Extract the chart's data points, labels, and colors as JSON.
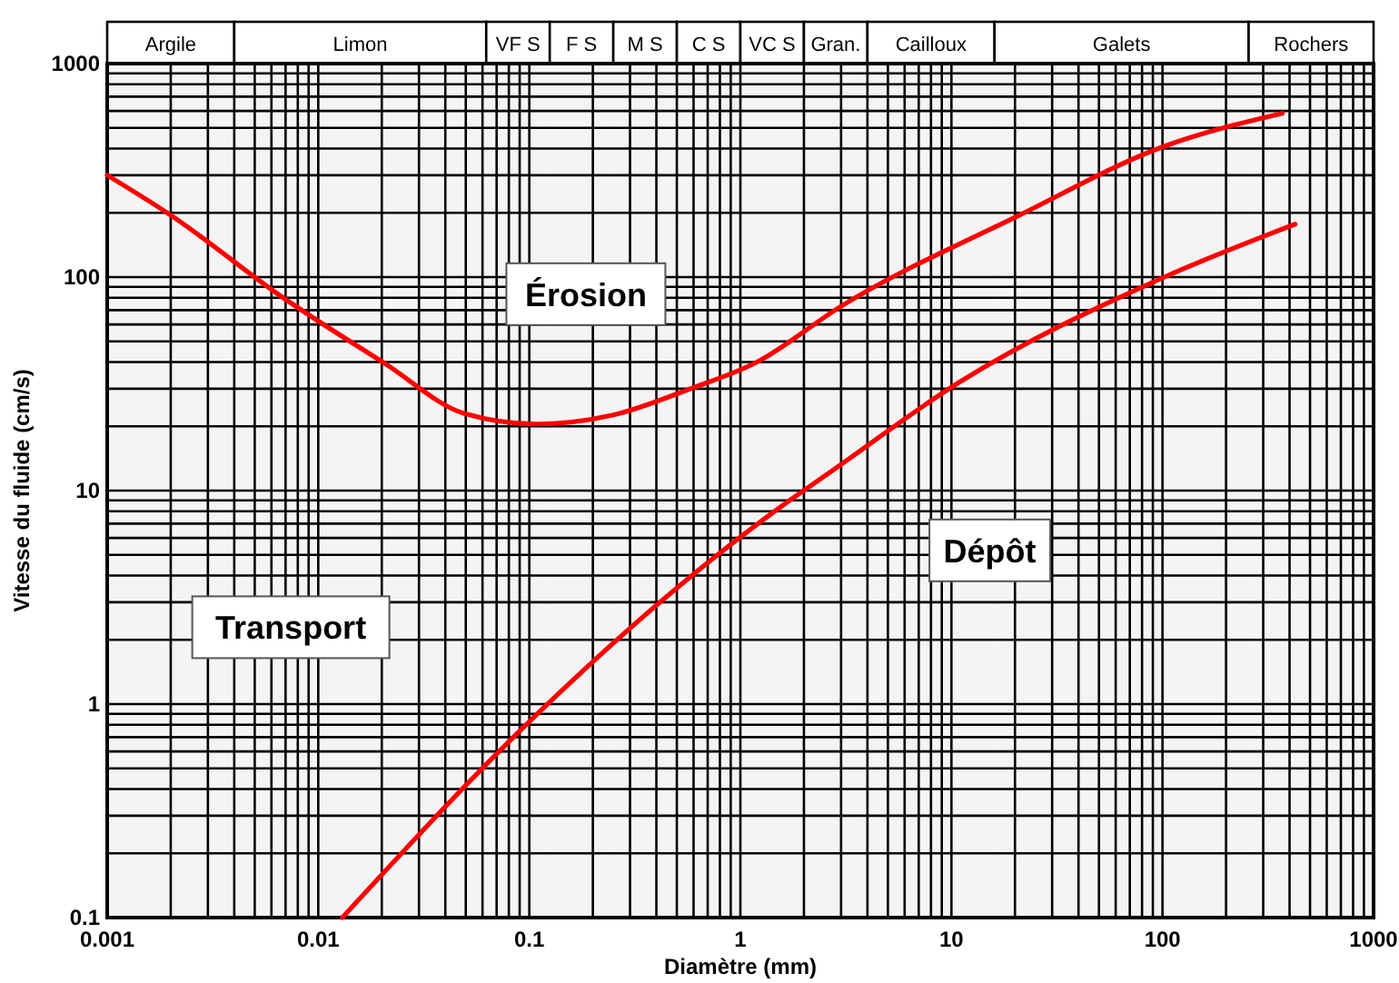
{
  "chart_data": {
    "type": "line",
    "xlabel": "Diamètre (mm)",
    "ylabel": "Vitesse du fluide (cm/s)",
    "log": "xy",
    "grid": true,
    "line_style": "solid",
    "xlim": [
      0.001,
      1000
    ],
    "xticks": [
      0.001,
      0.01,
      0.1,
      1,
      10,
      100,
      1000
    ],
    "ylim": [
      0.1,
      1000
    ],
    "yticks": [
      0.1,
      1,
      10,
      100,
      1000
    ],
    "series": [
      {
        "color": "#ff0000",
        "x": [
          0.001,
          0.002,
          0.0067,
          0.021,
          0.049,
          0.108,
          0.25,
          0.58,
          1.2,
          3.0,
          21,
          102,
          370
        ],
        "values": [
          300,
          195,
          81,
          39,
          23,
          20.5,
          22.6,
          30,
          40,
          73,
          195,
          410,
          585
        ]
      },
      {
        "color": "#ff0000",
        "x": [
          0.013,
          0.094,
          0.5,
          1.58,
          2.6,
          10.8,
          102,
          425
        ],
        "values": [
          0.1,
          0.78,
          3.5,
          8.5,
          12,
          32,
          100,
          177
        ]
      }
    ],
    "bands": [
      {
        "axis": "x",
        "from": 0.001,
        "to": 0.004,
        "label": "Argile",
        "color": "#f4f4f4"
      },
      {
        "axis": "x",
        "from": 0.004,
        "to": 0.0625,
        "label": "Limon",
        "color": "#f4f4f4"
      },
      {
        "axis": "x",
        "from": 0.0625,
        "to": 0.125,
        "label": "VF S",
        "color": "#f4f4f4"
      },
      {
        "axis": "x",
        "from": 0.125,
        "to": 0.25,
        "label": "F S",
        "color": "#f4f4f4"
      },
      {
        "axis": "x",
        "from": 0.25,
        "to": 0.5,
        "label": "M S",
        "color": "#f4f4f4"
      },
      {
        "axis": "x",
        "from": 0.5,
        "to": 1,
        "label": "C S",
        "color": "#f4f4f4"
      },
      {
        "axis": "x",
        "from": 1,
        "to": 2,
        "label": "VC S",
        "color": "#f4f4f4"
      },
      {
        "axis": "x",
        "from": 2,
        "to": 4,
        "label": "Gran.",
        "color": "#f4f4f4"
      },
      {
        "axis": "x",
        "from": 4,
        "to": 16,
        "label": "Cailloux",
        "color": "#f4f4f4"
      },
      {
        "axis": "x",
        "from": 16,
        "to": 256,
        "label": "Galets",
        "color": "#f4f4f4"
      },
      {
        "axis": "x",
        "from": 256,
        "to": 1000,
        "label": "Rochers",
        "color": "#f4f4f4"
      }
    ],
    "annotations": [
      "Érosion",
      "Dépôt",
      "Transport"
    ]
  }
}
